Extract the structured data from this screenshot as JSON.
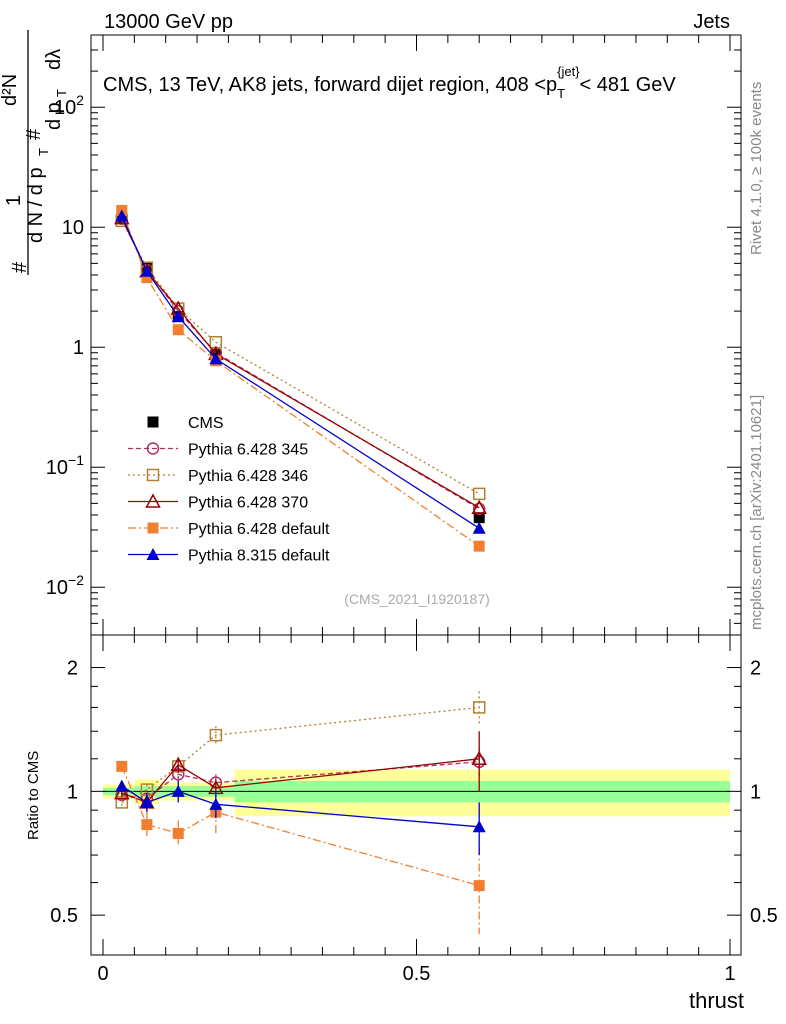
{
  "header": {
    "energy": "13000 GeV pp",
    "category": "Jets"
  },
  "side_labels": {
    "rivet": "Rivet 4.1.0, ≥ 100k events",
    "mcplots": "mcplots.cern.ch [arXiv:2401.10621]"
  },
  "chart_data": {
    "type": "line",
    "title": "CMS, 13 TeV, AK8 jets, forward dijet region, 408 < p_T^{jet} < 481 GeV",
    "analysis_id": "(CMS_2021_I1920187)",
    "xlabel": "thrust",
    "ylabel": "(1/dN/dp_T) d²N/(dp_T dλ)",
    "ratio_ylabel": "Ratio to CMS",
    "x_ticks": [
      "0",
      "0.5",
      "1"
    ],
    "y_ticks_main": [
      "10^-2",
      "10^-1",
      "1",
      "10",
      "10^2"
    ],
    "y_ticks_ratio": [
      "0.5",
      "1",
      "2"
    ],
    "xlim": [
      -0.02,
      1.02
    ],
    "ylim_main": [
      0.004,
      400
    ],
    "ylim_ratio": [
      0.4,
      2.4
    ],
    "y_scale": "log",
    "x": [
      0.03,
      0.07,
      0.12,
      0.18,
      0.6
    ],
    "bin_edges": [
      0.0,
      0.05,
      0.09,
      0.15,
      0.21,
      1.0
    ],
    "reference_band_ratio": [
      {
        "x0": 0.0,
        "x1": 0.05,
        "inner": 0.02,
        "outer": 0.04
      },
      {
        "x0": 0.05,
        "x1": 0.09,
        "inner": 0.03,
        "outer": 0.07
      },
      {
        "x0": 0.09,
        "x1": 0.15,
        "inner": 0.03,
        "outer": 0.05
      },
      {
        "x0": 0.15,
        "x1": 0.21,
        "inner": 0.03,
        "outer": 0.05
      },
      {
        "x0": 0.21,
        "x1": 1.0,
        "inner": 0.06,
        "outer": 0.13
      }
    ],
    "series": [
      {
        "name": "CMS",
        "color": "#000000",
        "marker": "filled-square",
        "line": "none",
        "values": [
          12.0,
          4.6,
          1.8,
          0.87,
          0.038
        ],
        "ratio": [
          1.0,
          1.0,
          1.0,
          1.0,
          1.0
        ],
        "ratio_err": [
          0,
          0,
          0,
          0,
          0
        ]
      },
      {
        "name": "Pythia 6.428 345",
        "color": "#b03060",
        "marker": "open-circle",
        "line": "dashed",
        "values": [
          11.8,
          4.4,
          2.0,
          0.9,
          0.045
        ],
        "ratio": [
          0.98,
          0.96,
          1.1,
          1.05,
          1.18
        ],
        "ratio_err": [
          0.02,
          0.03,
          0.04,
          0.05,
          0.09
        ]
      },
      {
        "name": "Pythia 6.428 346",
        "color": "#b08030",
        "marker": "open-square",
        "line": "dotted",
        "values": [
          11.3,
          4.6,
          2.1,
          1.1,
          0.06
        ],
        "ratio": [
          0.94,
          1.01,
          1.15,
          1.37,
          1.6
        ],
        "ratio_err": [
          0.02,
          0.03,
          0.05,
          0.07,
          0.15
        ]
      },
      {
        "name": "Pythia 6.428 370",
        "color": "#990000",
        "marker": "open-triangle",
        "line": "solid",
        "values": [
          11.9,
          4.3,
          2.1,
          0.88,
          0.046
        ],
        "ratio": [
          0.99,
          0.94,
          1.16,
          1.02,
          1.2
        ],
        "ratio_err": [
          0.02,
          0.04,
          0.05,
          0.05,
          0.2
        ]
      },
      {
        "name": "Pythia 6.428 default",
        "color": "#f08030",
        "marker": "filled-square",
        "line": "dashdot",
        "values": [
          13.8,
          3.8,
          1.4,
          0.77,
          0.022
        ],
        "ratio": [
          1.15,
          0.83,
          0.79,
          0.89,
          0.59
        ],
        "ratio_err": [
          0.03,
          0.06,
          0.06,
          0.1,
          0.14
        ]
      },
      {
        "name": "Pythia 8.315 default",
        "color": "#0000cc",
        "marker": "filled-triangle",
        "line": "solid",
        "values": [
          12.4,
          4.3,
          1.8,
          0.8,
          0.031
        ],
        "ratio": [
          1.03,
          0.94,
          1.0,
          0.93,
          0.82
        ],
        "ratio_err": [
          0.02,
          0.05,
          0.06,
          0.07,
          0.12
        ]
      }
    ]
  }
}
